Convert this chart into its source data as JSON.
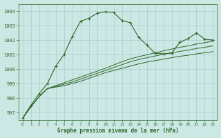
{
  "title": "Graphe pression niveau de la mer (hPa)",
  "background_color": "#cce8e4",
  "grid_color": "#aacccc",
  "line_color": "#2d6626",
  "xlim": [
    -0.5,
    23.5
  ],
  "ylim": [
    996.5,
    1004.5
  ],
  "yticks": [
    997,
    998,
    999,
    1000,
    1001,
    1002,
    1003,
    1004
  ],
  "xticks": [
    0,
    1,
    2,
    3,
    4,
    5,
    6,
    7,
    8,
    9,
    10,
    11,
    12,
    13,
    14,
    15,
    16,
    17,
    18,
    19,
    20,
    21,
    22,
    23
  ],
  "line1_y": [
    996.6,
    997.4,
    998.1,
    998.65,
    998.75,
    998.85,
    999.0,
    999.15,
    999.35,
    999.55,
    999.75,
    999.9,
    1000.05,
    1000.2,
    1000.35,
    1000.48,
    1000.58,
    1000.68,
    1000.78,
    1000.88,
    1000.95,
    1001.05,
    1001.12,
    1001.2
  ],
  "line2_y": [
    996.6,
    997.4,
    998.1,
    998.65,
    998.8,
    998.95,
    999.1,
    999.3,
    999.5,
    999.7,
    999.9,
    1000.1,
    1000.3,
    1000.5,
    1000.65,
    1000.78,
    1000.9,
    1001.02,
    1001.12,
    1001.22,
    1001.3,
    1001.42,
    1001.5,
    1001.6
  ],
  "line3_y": [
    996.6,
    997.4,
    998.1,
    998.65,
    998.85,
    999.05,
    999.25,
    999.45,
    999.65,
    999.85,
    1000.05,
    1000.28,
    1000.5,
    1000.7,
    1000.85,
    1000.98,
    1001.12,
    1001.25,
    1001.38,
    1001.5,
    1001.6,
    1001.72,
    1001.82,
    1001.92
  ],
  "main_line_x": [
    0,
    1,
    2,
    3,
    4,
    5,
    6,
    7,
    8,
    9,
    10,
    11,
    12,
    13,
    14,
    15,
    16,
    17,
    18,
    19,
    20,
    21,
    22,
    23
  ],
  "main_line_y": [
    996.6,
    997.5,
    998.3,
    999.0,
    1000.2,
    1001.0,
    1002.25,
    1003.3,
    1003.5,
    1003.85,
    1003.95,
    1003.9,
    1003.35,
    1003.2,
    1002.2,
    1001.65,
    1001.1,
    1001.05,
    1001.1,
    1001.85,
    1002.1,
    1002.5,
    1002.05,
    1002.0
  ]
}
